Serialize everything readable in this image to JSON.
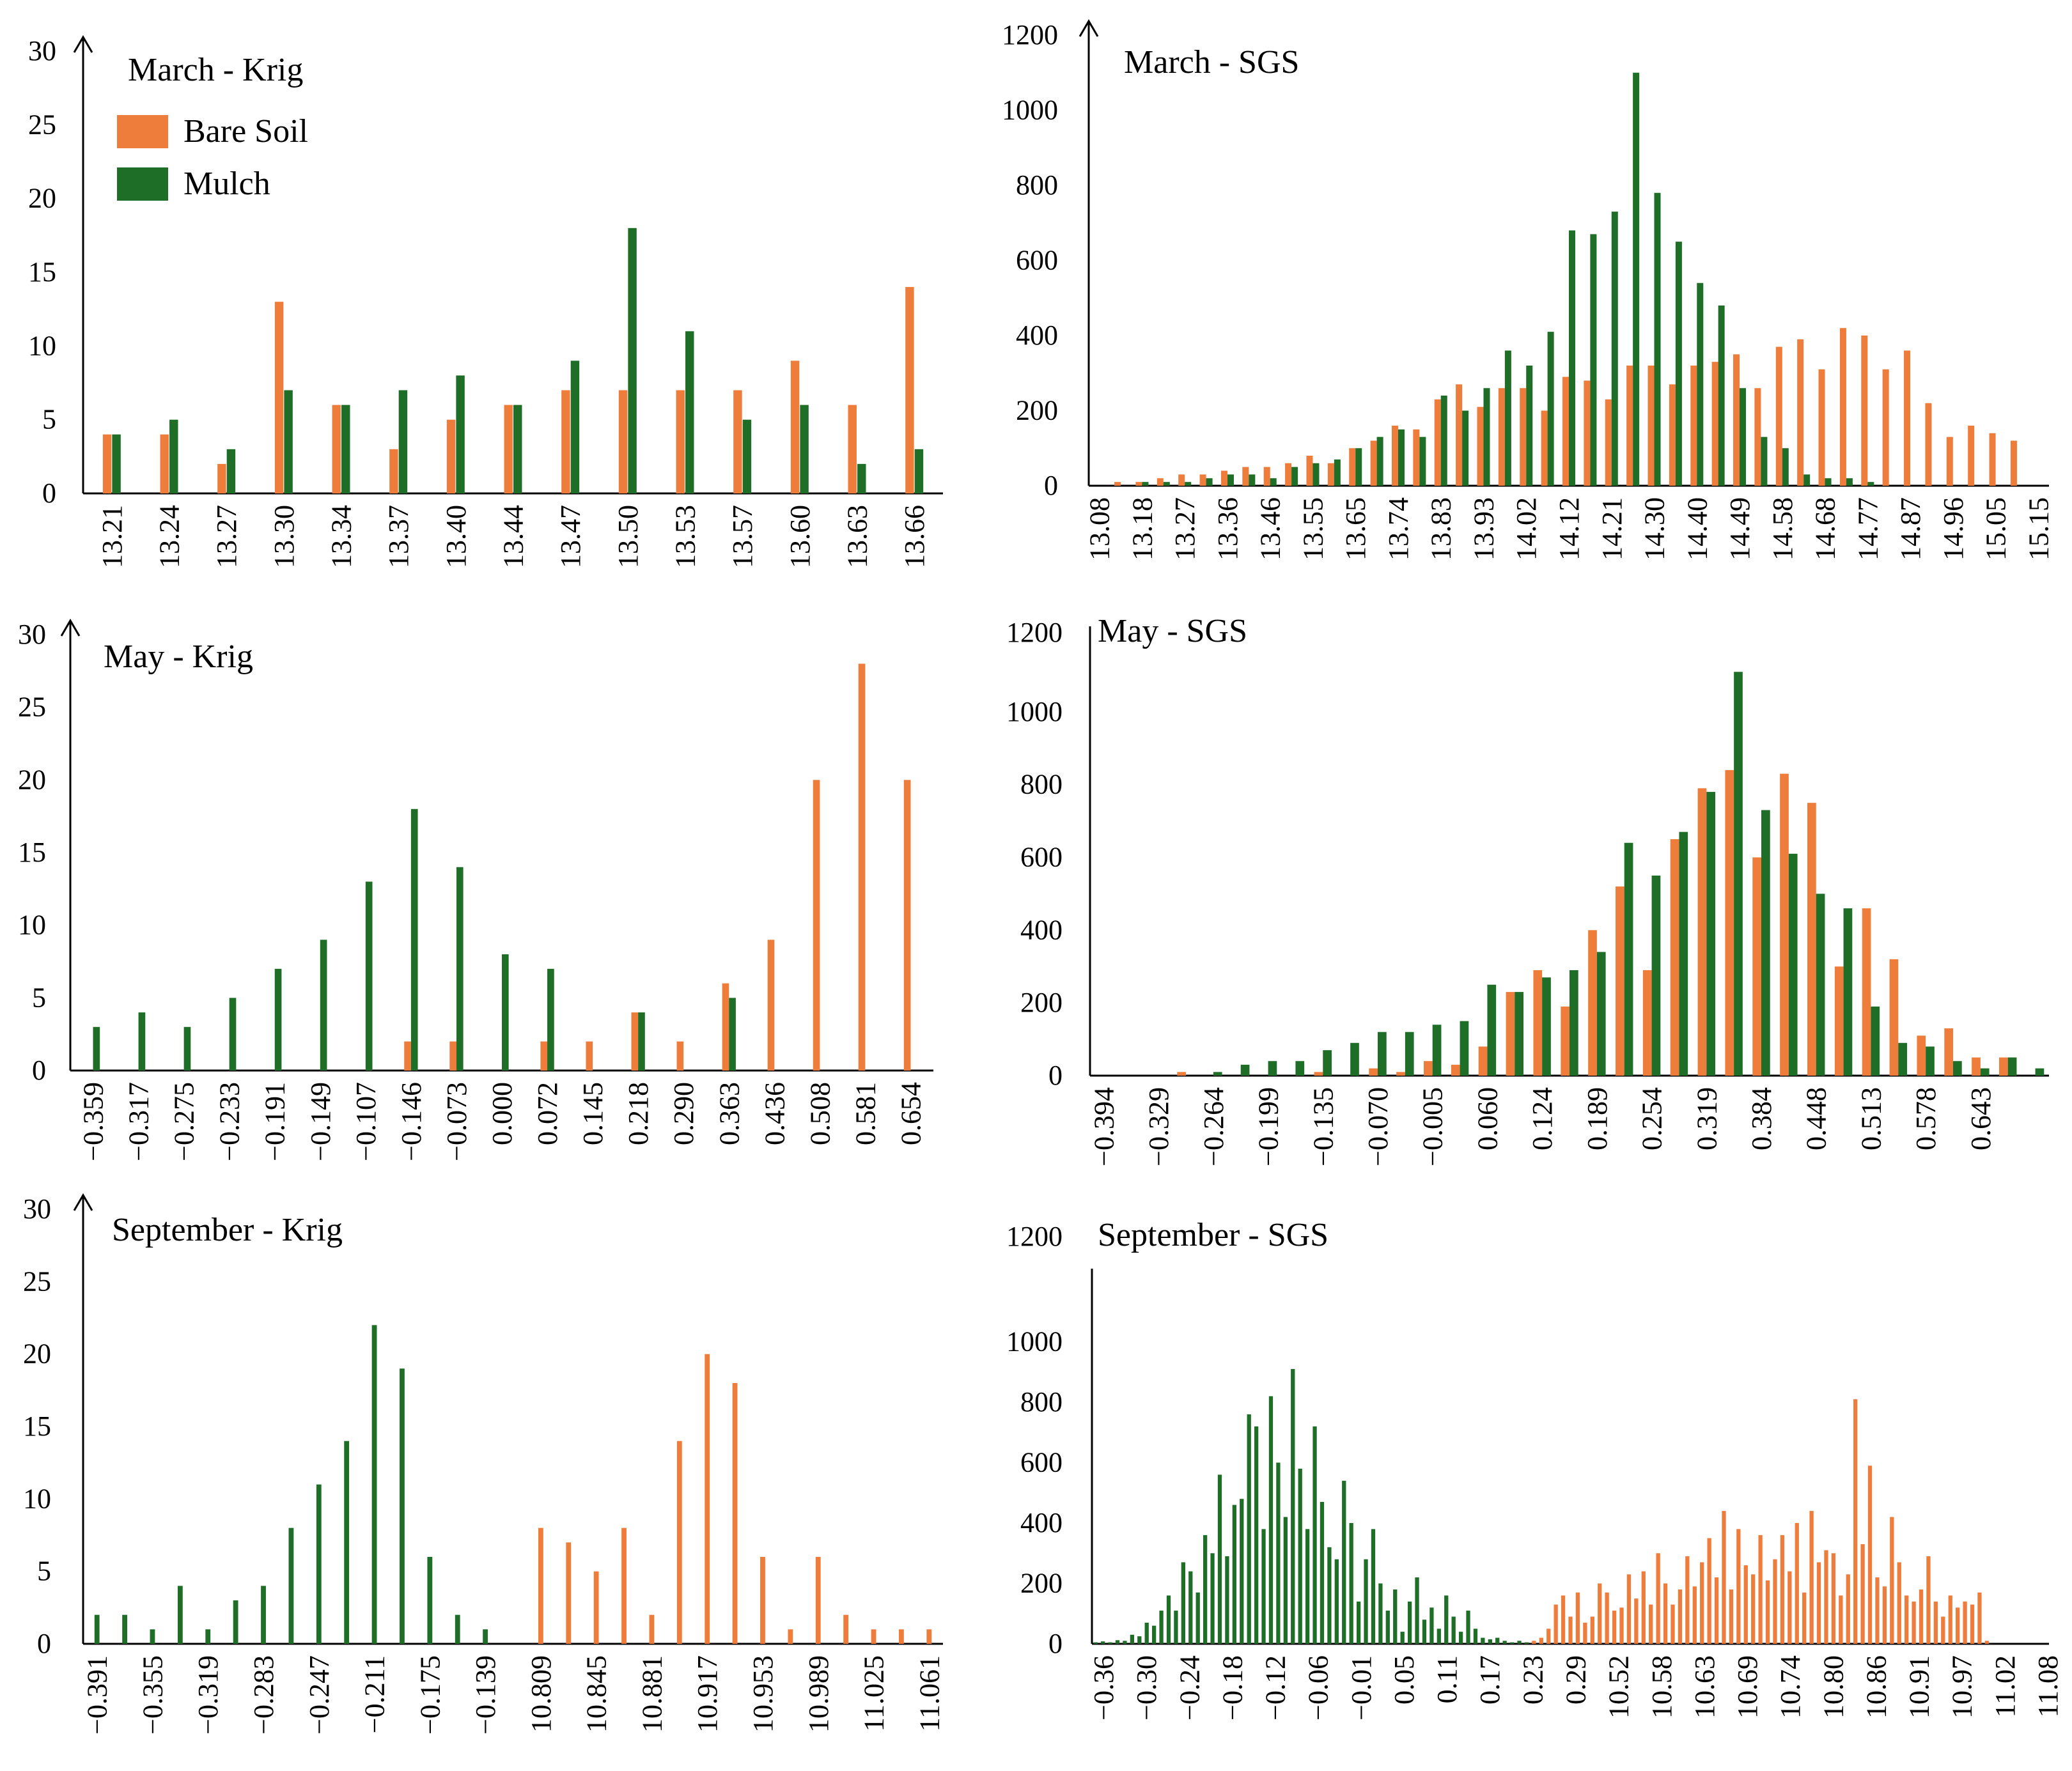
{
  "colors": {
    "bare_soil": "#ee7d3b",
    "mulch": "#1f6e27",
    "axis": "#000000"
  },
  "legend": {
    "items": [
      {
        "label": "Bare Soil",
        "color": "#ee7d3b"
      },
      {
        "label": "Mulch",
        "color": "#1f6e27"
      }
    ]
  },
  "chart_data": [
    {
      "id": "march-krig",
      "type": "bar",
      "title": "March - Krig",
      "arrow": true,
      "ylim": [
        0,
        30
      ],
      "yticks": [
        0,
        5,
        10,
        15,
        20,
        25,
        30
      ],
      "categories": [
        "13.21",
        "13.24",
        "13.27",
        "13.30",
        "13.34",
        "13.37",
        "13.40",
        "13.44",
        "13.47",
        "13.50",
        "13.53",
        "13.57",
        "13.60",
        "13.63",
        "13.66"
      ],
      "series": [
        {
          "name": "Bare Soil",
          "values": [
            4,
            4,
            2,
            13,
            6,
            3,
            5,
            6,
            7,
            7,
            7,
            7,
            9,
            6,
            14
          ]
        },
        {
          "name": "Mulch",
          "values": [
            4,
            5,
            3,
            7,
            6,
            7,
            8,
            6,
            9,
            18,
            11,
            5,
            6,
            2,
            3
          ]
        }
      ]
    },
    {
      "id": "march-sgs",
      "type": "bar",
      "title": "March - SGS",
      "arrow": true,
      "ylim": [
        0,
        1200
      ],
      "yticks": [
        0,
        200,
        400,
        600,
        800,
        1000,
        1200
      ],
      "categories": [
        "13.08",
        "13.13",
        "13.18",
        "13.22",
        "13.27",
        "13.32",
        "13.36",
        "13.41",
        "13.46",
        "13.50",
        "13.55",
        "13.60",
        "13.65",
        "13.69",
        "13.74",
        "13.79",
        "13.83",
        "13.88",
        "13.93",
        "13.97",
        "14.02",
        "14.07",
        "14.12",
        "14.16",
        "14.21",
        "14.26",
        "14.30",
        "14.35",
        "14.40",
        "14.45",
        "14.49",
        "14.54",
        "14.58",
        "14.63",
        "14.68",
        "14.72",
        "14.77",
        "14.82",
        "14.87",
        "14.91",
        "14.96",
        "15.01",
        "15.05",
        "15.10",
        "15.15"
      ],
      "labels_shown": [
        "13.08",
        "13.18",
        "13.27",
        "13.36",
        "13.46",
        "13.55",
        "13.65",
        "13.74",
        "13.83",
        "13.93",
        "14.02",
        "14.12",
        "14.21",
        "14.30",
        "14.40",
        "14.49",
        "14.58",
        "14.68",
        "14.77",
        "14.87",
        "14.96",
        "15.05",
        "15.15"
      ],
      "series": [
        {
          "name": "Bare Soil",
          "values": [
            0,
            10,
            10,
            20,
            30,
            30,
            40,
            50,
            50,
            60,
            80,
            60,
            100,
            120,
            160,
            150,
            230,
            270,
            210,
            260,
            260,
            200,
            290,
            280,
            230,
            320,
            320,
            270,
            320,
            330,
            350,
            260,
            370,
            390,
            310,
            420,
            400,
            310,
            360,
            220,
            130,
            160,
            140,
            120,
            0
          ]
        },
        {
          "name": "Mulch",
          "values": [
            0,
            0,
            10,
            10,
            10,
            20,
            30,
            30,
            20,
            50,
            60,
            70,
            100,
            130,
            150,
            130,
            240,
            200,
            260,
            360,
            320,
            410,
            680,
            670,
            730,
            1100,
            780,
            650,
            540,
            480,
            260,
            130,
            100,
            30,
            20,
            20,
            10,
            0,
            0,
            0,
            0,
            0,
            0,
            0,
            0
          ]
        }
      ]
    },
    {
      "id": "may-krig",
      "type": "bar",
      "title": "May - Krig",
      "arrow": true,
      "ylim": [
        0,
        30
      ],
      "yticks": [
        0,
        5,
        10,
        15,
        20,
        25,
        30
      ],
      "categories": [
        "−0.359",
        "−0.317",
        "−0.275",
        "−0.233",
        "−0.191",
        "−0.149",
        "−0.107",
        "−0.146",
        "−0.073",
        "0.000",
        "0.072",
        "0.145",
        "0.218",
        "0.290",
        "0.363",
        "0.436",
        "0.508",
        "0.581",
        "0.654"
      ],
      "series": [
        {
          "name": "Bare Soil",
          "values": [
            0,
            0,
            0,
            0,
            0,
            0,
            0,
            2,
            2,
            0,
            2,
            2,
            4,
            2,
            6,
            9,
            20,
            28,
            20
          ]
        },
        {
          "name": "Mulch",
          "values": [
            3,
            4,
            3,
            5,
            7,
            9,
            13,
            18,
            14,
            8,
            7,
            0,
            4,
            0,
            5,
            0,
            0,
            0,
            0
          ]
        }
      ]
    },
    {
      "id": "may-sgs",
      "type": "bar",
      "title": "May - SGS",
      "arrow": false,
      "ylim": [
        0,
        1200
      ],
      "yticks": [
        0,
        200,
        400,
        600,
        800,
        1000,
        1200
      ],
      "categories": [
        "−0.394",
        "−0.362",
        "−0.329",
        "−0.297",
        "−0.264",
        "−0.232",
        "−0.199",
        "−0.167",
        "−0.135",
        "−0.102",
        "−0.070",
        "−0.037",
        "−0.005",
        "0.027",
        "0.060",
        "0.092",
        "0.124",
        "0.157",
        "0.189",
        "0.222",
        "0.254",
        "0.286",
        "0.319",
        "0.351",
        "0.384",
        "0.416",
        "0.448",
        "0.481",
        "0.513",
        "0.546",
        "0.578",
        "0.610",
        "0.643",
        "0.675",
        "0.708"
      ],
      "labels_shown": [
        "−0.394",
        "−0.329",
        "−0.264",
        "−0.199",
        "−0.135",
        "−0.070",
        "−0.005",
        "0.060",
        "0.124",
        "0.189",
        "0.254",
        "0.319",
        "0.384",
        "0.448",
        "0.513",
        "0.578",
        "0.643"
      ],
      "series": [
        {
          "name": "Bare Soil",
          "values": [
            0,
            0,
            0,
            10,
            0,
            0,
            0,
            0,
            10,
            0,
            20,
            10,
            40,
            30,
            80,
            230,
            290,
            190,
            400,
            520,
            290,
            650,
            790,
            840,
            600,
            830,
            750,
            300,
            460,
            320,
            110,
            130,
            50,
            50,
            0
          ]
        },
        {
          "name": "Mulch",
          "values": [
            0,
            0,
            0,
            0,
            10,
            30,
            40,
            40,
            70,
            90,
            120,
            120,
            140,
            150,
            250,
            230,
            270,
            290,
            340,
            640,
            550,
            670,
            780,
            1110,
            730,
            610,
            500,
            460,
            190,
            90,
            80,
            40,
            20,
            50,
            20
          ]
        }
      ]
    },
    {
      "id": "september-krig",
      "type": "bar",
      "title": "September - Krig",
      "arrow": true,
      "ylim": [
        0,
        30
      ],
      "yticks": [
        0,
        5,
        10,
        15,
        20,
        25,
        30
      ],
      "categories": [
        "−0.391",
        "−0.373",
        "−0.355",
        "−0.337",
        "−0.319",
        "−0.301",
        "−0.283",
        "−0.265",
        "−0.247",
        "−0.229",
        "−0.211",
        "−0.193",
        "−0.175",
        "−0.157",
        "−0.139",
        "−0.121",
        "10.809",
        "10.827",
        "10.845",
        "10.863",
        "10.881",
        "10.899",
        "10.917",
        "10.935",
        "10.953",
        "10.971",
        "10.989",
        "11.007",
        "11.025",
        "11.043",
        "11.061"
      ],
      "labels_shown": [
        "−0.391",
        "−0.355",
        "−0.319",
        "−0.283",
        "−0.247",
        "−0.211",
        "−0.175",
        "−0.139",
        "10.809",
        "10.845",
        "10.881",
        "10.917",
        "10.953",
        "10.989",
        "11.025",
        "11.061"
      ],
      "series": [
        {
          "name": "Mulch",
          "values": [
            2,
            2,
            1,
            4,
            1,
            3,
            4,
            8,
            11,
            14,
            22,
            19,
            6,
            2,
            1,
            0,
            0,
            0,
            0,
            0,
            0,
            0,
            0,
            0,
            0,
            0,
            0,
            0,
            0,
            0,
            0
          ]
        },
        {
          "name": "Bare Soil",
          "values": [
            0,
            0,
            0,
            0,
            0,
            0,
            0,
            0,
            0,
            0,
            0,
            0,
            0,
            0,
            0,
            0,
            8,
            7,
            5,
            8,
            2,
            14,
            20,
            18,
            6,
            1,
            6,
            2,
            1,
            1,
            1
          ]
        }
      ]
    },
    {
      "id": "september-sgs",
      "type": "bar",
      "title": "September - SGS",
      "arrow": false,
      "ylim": [
        0,
        1200
      ],
      "yticks": [
        0,
        200,
        400,
        600,
        800,
        1000,
        1200
      ],
      "labels_shown": [
        "−0.36",
        "−0.30",
        "−0.24",
        "−0.18",
        "−0.12",
        "−0.06",
        "−0.01",
        "0.05",
        "0.11",
        "0.17",
        "0.23",
        "0.29",
        "10.52",
        "10.58",
        "10.63",
        "10.69",
        "10.74",
        "10.80",
        "10.86",
        "10.91",
        "10.97",
        "11.02",
        "11.08"
      ],
      "series": [
        {
          "name": "Mulch",
          "values": [
            5,
            8,
            5,
            12,
            10,
            30,
            25,
            70,
            60,
            110,
            160,
            110,
            270,
            240,
            170,
            360,
            300,
            560,
            290,
            460,
            480,
            760,
            720,
            380,
            820,
            600,
            420,
            910,
            580,
            380,
            720,
            470,
            320,
            280,
            540,
            400,
            140,
            280,
            380,
            200,
            110,
            180,
            40,
            140,
            220,
            80,
            120,
            50,
            160,
            90,
            40,
            110,
            50,
            20,
            15,
            20,
            10,
            5,
            10,
            5,
            0,
            0,
            0,
            0,
            0,
            0,
            0,
            0,
            0,
            0,
            0,
            0,
            0,
            0,
            0,
            0,
            0,
            0,
            0,
            0,
            0,
            0,
            0,
            0,
            0,
            0,
            0,
            0,
            0,
            0,
            0,
            0,
            0,
            0,
            0,
            0,
            0,
            0,
            0,
            0,
            0,
            0,
            0,
            0,
            0,
            0,
            0,
            0,
            0,
            0,
            0,
            0,
            0,
            0,
            0,
            0,
            0,
            0,
            0,
            0,
            0,
            0,
            0,
            0,
            0,
            0,
            0,
            0,
            0,
            0,
            0
          ]
        },
        {
          "name": "Bare Soil",
          "values": [
            0,
            0,
            0,
            0,
            0,
            0,
            0,
            0,
            0,
            0,
            0,
            0,
            0,
            0,
            0,
            0,
            0,
            0,
            0,
            0,
            0,
            0,
            0,
            0,
            0,
            0,
            0,
            0,
            0,
            0,
            0,
            0,
            0,
            0,
            0,
            0,
            0,
            0,
            0,
            0,
            0,
            0,
            0,
            0,
            0,
            0,
            0,
            0,
            0,
            0,
            0,
            0,
            0,
            0,
            0,
            0,
            0,
            0,
            0,
            0,
            10,
            20,
            50,
            130,
            160,
            90,
            170,
            70,
            90,
            200,
            170,
            110,
            120,
            230,
            150,
            240,
            130,
            300,
            200,
            130,
            180,
            290,
            190,
            270,
            350,
            220,
            440,
            180,
            380,
            260,
            230,
            360,
            210,
            280,
            360,
            240,
            400,
            170,
            440,
            270,
            310,
            300,
            160,
            230,
            810,
            330,
            590,
            220,
            190,
            420,
            270,
            160,
            140,
            180,
            290,
            140,
            90,
            160,
            120,
            140,
            130,
            170,
            10
          ]
        }
      ]
    }
  ]
}
